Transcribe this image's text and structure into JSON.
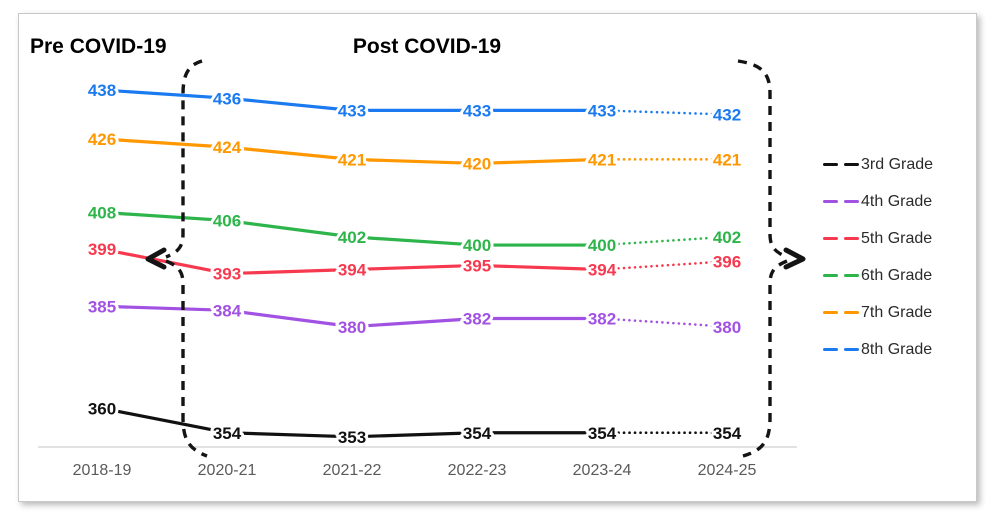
{
  "chart_data": {
    "type": "line",
    "title": "",
    "categories": [
      "2018-19",
      "2020-21",
      "2021-22",
      "2022-23",
      "2023-24",
      "2024-25"
    ],
    "series": [
      {
        "name": "3rd Grade",
        "color": "#111111",
        "values": [
          360,
          354,
          353,
          354,
          354,
          354
        ]
      },
      {
        "name": "4th Grade",
        "color": "#a252e2",
        "values": [
          385,
          384,
          380,
          382,
          382,
          380
        ]
      },
      {
        "name": "5th Grade",
        "color": "#f7394f",
        "values": [
          399,
          393,
          394,
          395,
          394,
          396
        ]
      },
      {
        "name": "6th Grade",
        "color": "#2db44a",
        "values": [
          408,
          406,
          402,
          400,
          400,
          402
        ]
      },
      {
        "name": "7th Grade",
        "color": "#ff9800",
        "values": [
          426,
          424,
          421,
          420,
          421,
          421
        ]
      },
      {
        "name": "8th Grade",
        "color": "#1b7af0",
        "values": [
          438,
          436,
          433,
          433,
          433,
          432
        ]
      }
    ],
    "annotations": {
      "pre_label": "Pre COVID-19",
      "post_label": "Post COVID-19"
    },
    "data_labels": true,
    "last_segment_style": "dotted",
    "brace_color": "#141414",
    "axis_line_color": "#d9d9d9",
    "tick_label_color": "#5a5a5a",
    "legend_position": "right",
    "grid": false,
    "ylim": [
      345,
      445
    ],
    "xlabel": "",
    "ylabel": ""
  }
}
